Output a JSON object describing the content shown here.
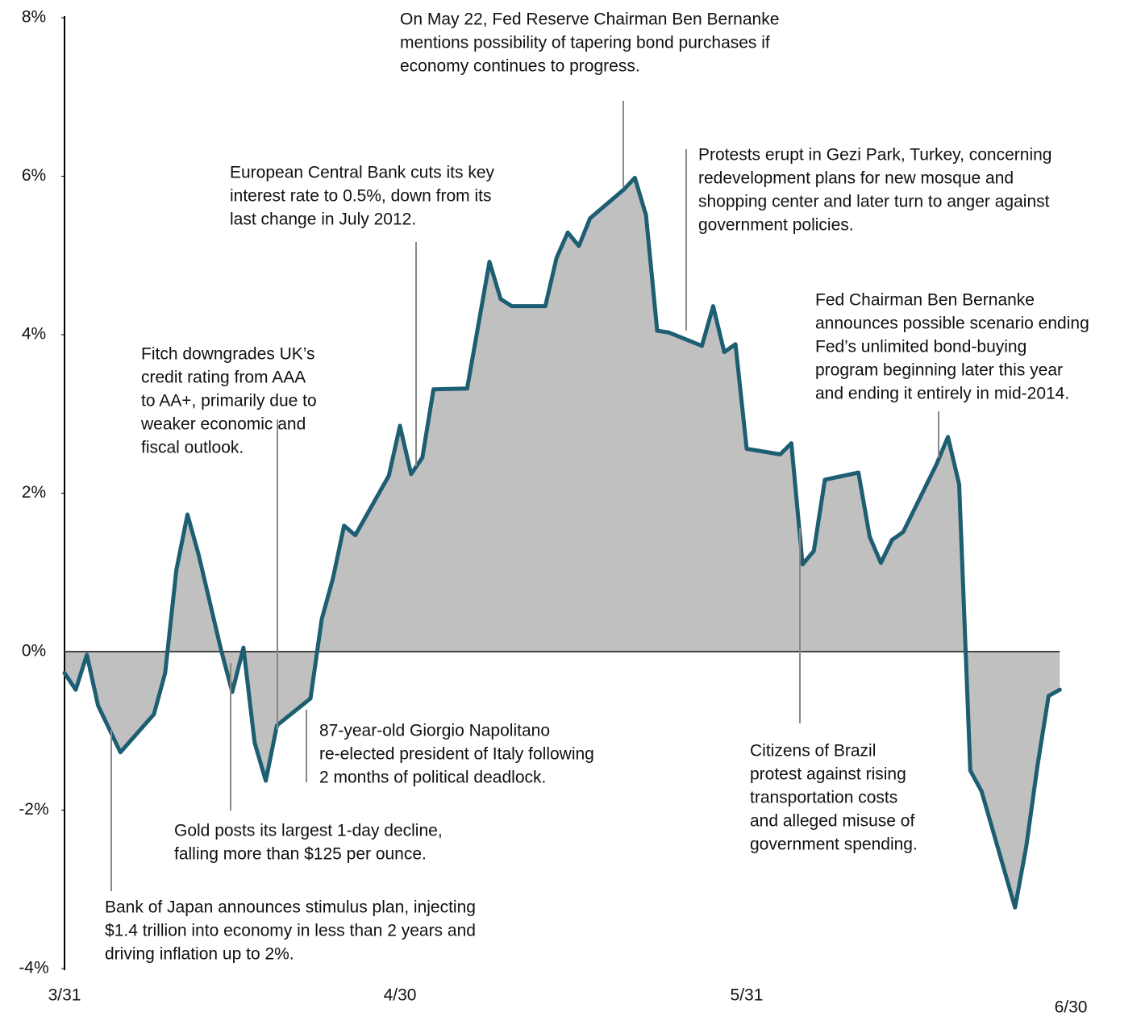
{
  "chart_data": {
    "type": "area",
    "x": [
      "3/31",
      "4/1",
      "4/2",
      "4/3",
      "4/5",
      "4/8",
      "4/9",
      "4/10",
      "4/11",
      "4/12",
      "4/14",
      "4/15",
      "4/16",
      "4/17",
      "4/18",
      "4/19",
      "4/22",
      "4/23",
      "4/24",
      "4/25",
      "4/26",
      "4/29",
      "4/30",
      "5/1",
      "5/2",
      "5/3",
      "5/6",
      "5/8",
      "5/9",
      "5/10",
      "5/13",
      "5/14",
      "5/15",
      "5/16",
      "5/17",
      "5/20",
      "5/21",
      "5/22",
      "5/23",
      "5/24",
      "5/27",
      "5/28",
      "5/29",
      "5/30",
      "5/31",
      "6/3",
      "6/4",
      "6/5",
      "6/6",
      "6/7",
      "6/10",
      "6/11",
      "6/12",
      "6/13",
      "6/14",
      "6/17",
      "6/18",
      "6/19",
      "6/20",
      "6/21",
      "6/24",
      "6/25",
      "6/26",
      "6/27",
      "6/28"
    ],
    "values": [
      -0.27,
      -0.48,
      -0.04,
      -0.68,
      -1.27,
      -0.79,
      -0.27,
      1.03,
      1.73,
      1.22,
      0.02,
      -0.51,
      0.05,
      -1.15,
      -1.63,
      -0.93,
      -0.59,
      0.41,
      0.92,
      1.59,
      1.47,
      2.22,
      2.85,
      2.24,
      2.45,
      3.31,
      3.32,
      4.92,
      4.45,
      4.36,
      4.36,
      4.97,
      5.29,
      5.12,
      5.47,
      5.83,
      5.98,
      5.51,
      4.05,
      4.03,
      3.86,
      4.36,
      3.78,
      3.88,
      2.56,
      2.49,
      2.63,
      1.1,
      1.27,
      2.17,
      2.26,
      1.45,
      1.12,
      1.41,
      1.51,
      2.37,
      2.71,
      2.11,
      -1.5,
      -1.76,
      -3.23,
      -2.46,
      -1.45,
      -0.56,
      -0.48
    ],
    "line_color": "#1d5e72",
    "fill_color": "#c0c0c0",
    "xlim": [
      "3/31",
      "6/30"
    ],
    "xticks": [
      "3/31",
      "4/30",
      "5/31",
      "6/30"
    ],
    "ylim": [
      -4,
      8
    ],
    "yticks": [
      {
        "value": -4,
        "label": "-4%"
      },
      {
        "value": -2,
        "label": "-2%"
      },
      {
        "value": 0,
        "label": "0%"
      },
      {
        "value": 2,
        "label": "2%"
      },
      {
        "value": 4,
        "label": "4%"
      },
      {
        "value": 6,
        "label": "6%"
      },
      {
        "value": 8,
        "label": "8%"
      }
    ],
    "annotations": [
      [
        "On May 22, Fed Reserve Chairman Ben Bernanke",
        "mentions possibility of tapering bond purchases if",
        "economy continues to progress."
      ],
      [
        "European Central Bank cuts its key",
        "interest rate to 0.5%, down from its",
        "last change in July 2012."
      ],
      [
        "Protests erupt in Gezi Park, Turkey, concerning",
        "redevelopment plans for new mosque and",
        "shopping center and later turn to anger against",
        "government policies."
      ],
      [
        "Fed Chairman Ben Bernanke",
        "announces possible scenario ending",
        "Fed’s unlimited bond-buying",
        "program beginning later this year",
        "and ending it entirely in mid-2014."
      ],
      [
        "Fitch downgrades UK’s",
        "credit rating from AAA",
        "to AA+, primarily due to",
        "weaker economic and",
        "fiscal outlook."
      ],
      [
        "87-year-old Giorgio Napolitano",
        "re-elected president of Italy following",
        "2 months of political deadlock."
      ],
      [
        "Gold posts its largest 1-day decline,",
        "falling more than $125 per ounce."
      ],
      [
        "Bank of Japan announces stimulus plan, injecting",
        "$1.4 trillion into economy in less than 2 years and",
        "driving inflation up to 2%."
      ],
      [
        "Citizens of Brazil",
        "protest against rising",
        "transportation costs",
        "and alleged misuse of",
        "government spending."
      ]
    ]
  }
}
